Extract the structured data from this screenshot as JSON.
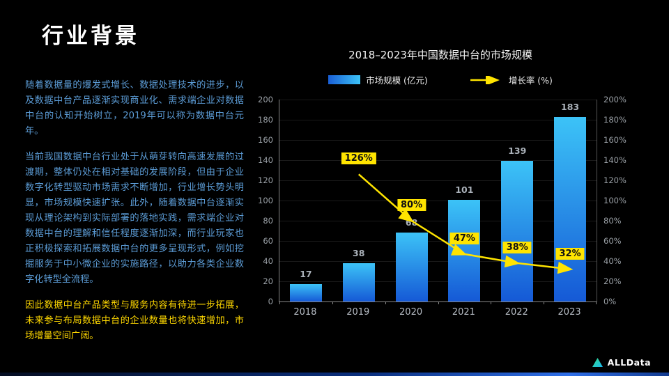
{
  "slide": {
    "title": "行业背景",
    "paragraphs": [
      "随着数据量的爆发式增长、数据处理技术的进步，以及数据中台产品逐渐实现商业化、需求端企业对数据中台的认知开始树立，2019年可以称为数据中台元年。",
      "当前我国数据中台行业处于从萌芽转向高速发展的过渡期，整体仍处在相对基础的发展阶段，但由于企业数字化转型驱动市场需求不断增加，行业增长势头明显，市场规模快速扩张。此外，随着数据中台逐渐实现从理论架构到实际部署的落地实践，需求端企业对数据中台的理解和信任程度逐渐加深，而行业玩家也正积极探索和拓展数据中台的更多呈现形式，例如挖掘服务于中小微企业的实施路径，以助力各类企业数字化转型全流程。",
      "因此数据中台产品类型与服务内容有待进一步拓展，未来参与布局数据中台的企业数量也将快速增加，市场增量空间广阔。"
    ],
    "logo_text": "ALLData"
  },
  "chart_data": {
    "type": "bar",
    "title": "2018–2023年中国数据中台的市场规模",
    "categories": [
      "2018",
      "2019",
      "2020",
      "2021",
      "2022",
      "2023"
    ],
    "series": [
      {
        "name": "市场规模 (亿元)",
        "type": "bar",
        "values": [
          17,
          38,
          68,
          101,
          139,
          183
        ]
      },
      {
        "name": "增长率 (%)",
        "type": "line",
        "values": [
          null,
          126,
          80,
          47,
          38,
          32
        ],
        "unit": "%"
      }
    ],
    "left_axis": {
      "min": 0,
      "max": 200,
      "step": 20
    },
    "right_axis": {
      "min": 0,
      "max": 200,
      "step": 20,
      "suffix": "%"
    },
    "colors": {
      "bar_gradient_top": "#3cc3f7",
      "bar_gradient_bottom": "#1559d6",
      "line": "#ffe400",
      "axis": "#8a8a8a",
      "body_text": "#5b9bd5",
      "highlight_text": "#ffd800"
    },
    "legend_position": "top",
    "grid": true
  }
}
